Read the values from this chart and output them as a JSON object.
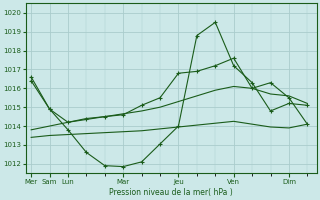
{
  "xlabel": "Pression niveau de la mer( hPa )",
  "bg_color": "#cce8e8",
  "grid_major_color": "#aacccc",
  "line_color": "#1a5c1a",
  "ylim": [
    1011.5,
    1020.5
  ],
  "xlim": [
    -0.3,
    15.5
  ],
  "line1_x": [
    0,
    1,
    2,
    3,
    4,
    5,
    6,
    7,
    8,
    9,
    10,
    11,
    12,
    13,
    14,
    15
  ],
  "line1_y": [
    1016.6,
    1014.9,
    1013.8,
    1012.6,
    1011.9,
    1011.85,
    1012.1,
    1013.05,
    1014.0,
    1018.8,
    1019.5,
    1017.2,
    1016.3,
    1014.8,
    1015.2,
    1015.1
  ],
  "line2_x": [
    0,
    1,
    2,
    3,
    4,
    5,
    6,
    7,
    8,
    9,
    10,
    11,
    12,
    13,
    14,
    15
  ],
  "line2_y": [
    1016.4,
    1014.9,
    1014.2,
    1014.4,
    1014.5,
    1014.6,
    1015.1,
    1015.5,
    1016.8,
    1016.9,
    1017.2,
    1017.6,
    1016.0,
    1016.3,
    1015.5,
    1014.1
  ],
  "line3_x": [
    0,
    1,
    2,
    3,
    4,
    5,
    6,
    7,
    8,
    9,
    10,
    11,
    12,
    13,
    14,
    15
  ],
  "line3_y": [
    1013.8,
    1014.0,
    1014.2,
    1014.35,
    1014.5,
    1014.65,
    1014.8,
    1015.0,
    1015.3,
    1015.6,
    1015.9,
    1016.1,
    1016.0,
    1015.7,
    1015.6,
    1015.2
  ],
  "line4_x": [
    0,
    1,
    2,
    3,
    4,
    5,
    6,
    7,
    8,
    9,
    10,
    11,
    12,
    13,
    14,
    15
  ],
  "line4_y": [
    1013.4,
    1013.5,
    1013.55,
    1013.6,
    1013.65,
    1013.7,
    1013.75,
    1013.85,
    1013.95,
    1014.05,
    1014.15,
    1014.25,
    1014.1,
    1013.95,
    1013.9,
    1014.1
  ],
  "yticks": [
    1012,
    1013,
    1014,
    1015,
    1016,
    1017,
    1018,
    1019,
    1020
  ],
  "xtick_positions": [
    0,
    1,
    2,
    5,
    8,
    11,
    14
  ],
  "xtick_labels": [
    "Mer",
    "Sam",
    "Lun",
    "Mar",
    "Jeu",
    "Ven",
    "Dim"
  ]
}
